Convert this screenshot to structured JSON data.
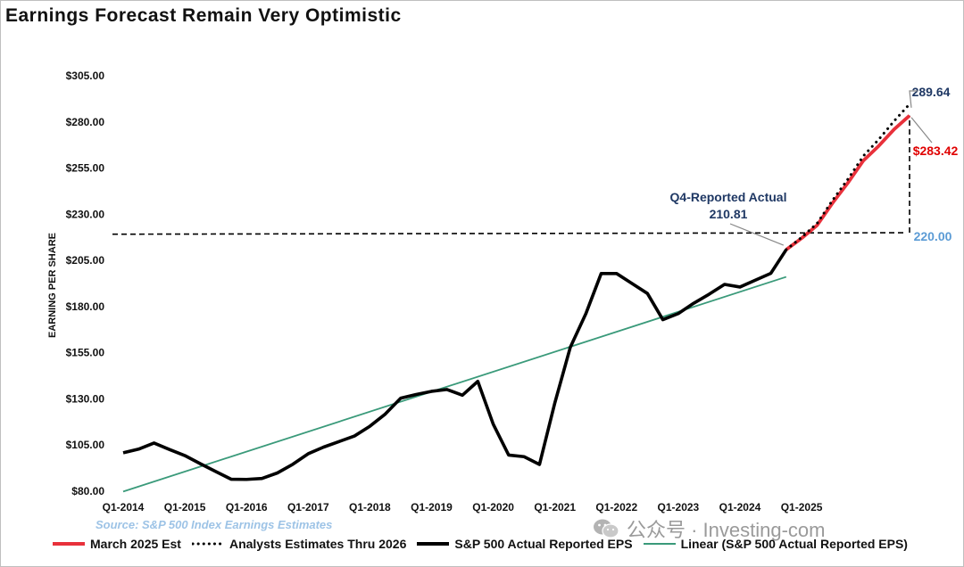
{
  "title": "Earnings Forecast Remain Very Optimistic",
  "source": "Source: S&P 500 Index Earnings Estimates",
  "watermark": "公众号 · Investing-com",
  "colors": {
    "actual": "#000000",
    "march_est": "#e8313b",
    "analysts": "#000000",
    "linear": "#3a9a7a",
    "annotation_blue": "#1f3864",
    "label_220": "#5b9bd5",
    "red_label": "#e00000",
    "grid": "#d9d9d9"
  },
  "chart_data": {
    "type": "line",
    "ylabel": "EARNING PER SHARE",
    "ylim": [
      80,
      305
    ],
    "y_ticks": [
      "$80.00",
      "$105.00",
      "$130.00",
      "$155.00",
      "$180.00",
      "$205.00",
      "$230.00",
      "$255.00",
      "$280.00",
      "$305.00"
    ],
    "y_tick_values": [
      80,
      105,
      130,
      155,
      180,
      205,
      230,
      255,
      280,
      305
    ],
    "x_tick_labels": [
      "Q1-2014",
      "Q1-2015",
      "Q1-2016",
      "Q1-2017",
      "Q1-2018",
      "Q1-2019",
      "Q1-2020",
      "Q1-2021",
      "Q1-2022",
      "Q1-2023",
      "Q1-2024",
      "Q1-2025"
    ],
    "x_tick_quarters": [
      0,
      4,
      8,
      12,
      16,
      20,
      24,
      28,
      32,
      36,
      40,
      44
    ],
    "x_range_quarters": [
      0,
      51
    ],
    "series": [
      {
        "name": "S&P 500 Actual Reported EPS",
        "style": "solid-thick",
        "color": "#000000",
        "x": [
          "Q1-2014",
          "Q2-2014",
          "Q3-2014",
          "Q4-2014",
          "Q1-2015",
          "Q2-2015",
          "Q3-2015",
          "Q4-2015",
          "Q1-2016",
          "Q2-2016",
          "Q3-2016",
          "Q4-2016",
          "Q1-2017",
          "Q2-2017",
          "Q3-2017",
          "Q4-2017",
          "Q1-2018",
          "Q2-2018",
          "Q3-2018",
          "Q4-2018",
          "Q1-2019",
          "Q2-2019",
          "Q3-2019",
          "Q4-2019",
          "Q1-2020",
          "Q2-2020",
          "Q3-2020",
          "Q4-2020",
          "Q1-2021",
          "Q2-2021",
          "Q3-2021",
          "Q4-2021",
          "Q1-2022",
          "Q2-2022",
          "Q3-2022",
          "Q4-2022",
          "Q1-2023",
          "Q2-2023",
          "Q3-2023",
          "Q4-2023",
          "Q1-2024",
          "Q2-2024",
          "Q3-2024",
          "Q4-2024"
        ],
        "values": [
          100.8,
          102.8,
          106.1,
          102.6,
          99.3,
          94.9,
          90.7,
          86.5,
          86.4,
          86.9,
          89.9,
          94.6,
          100.3,
          103.9,
          106.9,
          109.9,
          115.2,
          121.8,
          130.4,
          132.4,
          134.1,
          135.1,
          132.0,
          139.5,
          116.3,
          99.6,
          98.7,
          94.5,
          128.0,
          158.0,
          176.0,
          197.9,
          197.9,
          192.5,
          187.1,
          172.9,
          176.2,
          181.8,
          186.7,
          192.0,
          190.6,
          194.3,
          198.0,
          210.81
        ]
      },
      {
        "name": "March 2025 Est",
        "style": "solid-red",
        "color": "#e8313b",
        "x": [
          "Q4-2024",
          "Q1-2025",
          "Q2-2025",
          "Q3-2025",
          "Q4-2025",
          "Q1-2026",
          "Q2-2026",
          "Q3-2026",
          "Q4-2026"
        ],
        "values": [
          210.81,
          217.0,
          224.0,
          236.0,
          247.0,
          259.0,
          267.0,
          276.0,
          283.42
        ]
      },
      {
        "name": "Analysts Estimates Thru 2026",
        "style": "dotted",
        "color": "#000000",
        "x": [
          "Q4-2024",
          "Q1-2025",
          "Q2-2025",
          "Q3-2025",
          "Q4-2025",
          "Q1-2026",
          "Q2-2026",
          "Q3-2026",
          "Q4-2026"
        ],
        "values": [
          210.81,
          217.5,
          225.0,
          237.5,
          249.0,
          261.5,
          270.5,
          280.5,
          289.64
        ]
      },
      {
        "name": "Linear (S&P 500 Actual Reported EPS)",
        "style": "trend",
        "color": "#3a9a7a",
        "x": [
          "Q1-2014",
          "Q4-2024"
        ],
        "values": [
          79.8,
          196.1
        ]
      }
    ],
    "reference_line": {
      "y": 220.0,
      "x_range_quarters": [
        0,
        50.5
      ]
    },
    "annotations": {
      "q4_reported_title": "Q4-Reported Actual",
      "q4_reported_value": "210.81",
      "label_289": "289.64",
      "label_283": "$283.42",
      "label_220": "220.00"
    },
    "legend_placement": "bottom",
    "grid": false
  }
}
